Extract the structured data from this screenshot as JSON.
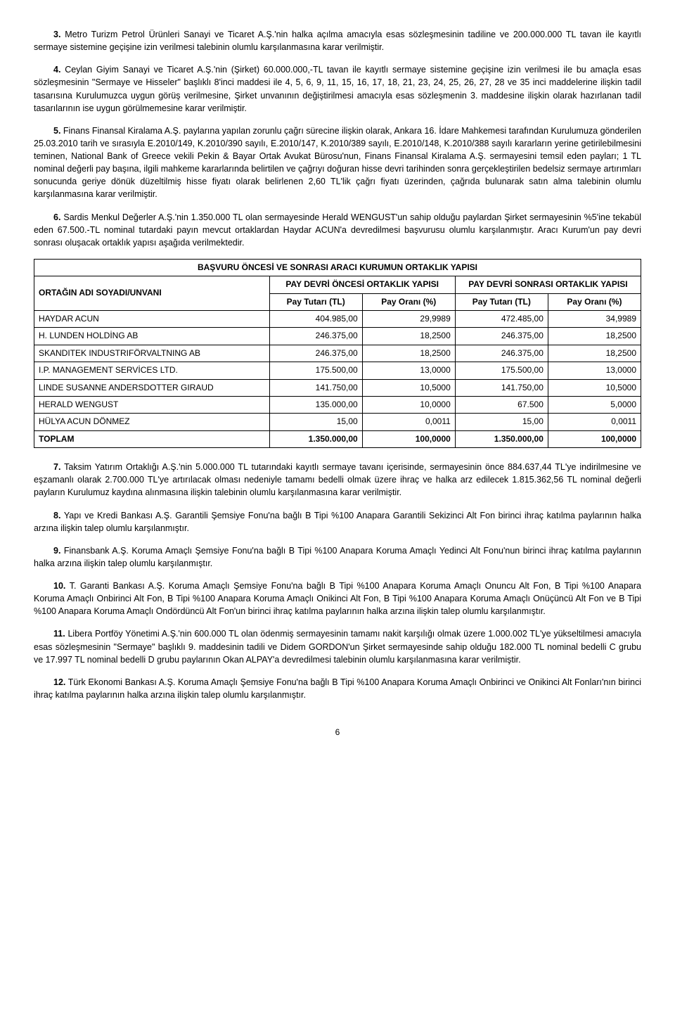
{
  "paragraphs": {
    "p3_lead": "3.",
    "p3": " Metro Turizm Petrol Ürünleri Sanayi ve Ticaret A.Ş.'nin halka açılma amacıyla esas sözleşmesinin tadiline ve 200.000.000 TL tavan ile kayıtlı sermaye sistemine geçişine izin verilmesi talebinin olumlu karşılanmasına karar verilmiştir.",
    "p4_lead": "4.",
    "p4": " Ceylan Giyim Sanayi ve Ticaret A.Ş.'nin (Şirket) 60.000.000,-TL tavan ile kayıtlı sermaye sistemine geçişine izin verilmesi ile bu amaçla esas sözleşmesinin \"Sermaye ve Hisseler\" başlıklı 8'inci maddesi ile 4, 5, 6, 9, 11, 15, 16, 17, 18, 21, 23, 24, 25, 26, 27, 28 ve 35 inci maddelerine ilişkin tadil tasarısına Kurulumuzca uygun görüş verilmesine, Şirket unvanının değiştirilmesi amacıyla esas sözleşmenin 3. maddesine ilişkin olarak hazırlanan tadil tasarılarının ise uygun görülmemesine karar verilmiştir.",
    "p5_lead": "5.",
    "p5": " Finans Finansal Kiralama A.Ş. paylarına yapılan zorunlu çağrı sürecine ilişkin olarak, Ankara 16. İdare Mahkemesi tarafından Kurulumuza gönderilen 25.03.2010 tarih ve sırasıyla E.2010/149, K.2010/390 sayılı, E.2010/147, K.2010/389 sayılı, E.2010/148, K.2010/388 sayılı kararların yerine getirilebilmesini teminen, National Bank of Greece vekili Pekin & Bayar Ortak Avukat Bürosu'nun, Finans Finansal Kiralama A.Ş. sermayesini temsil eden payları; 1 TL nominal değerli pay başına, ilgili mahkeme kararlarında belirtilen ve çağrıyı doğuran hisse devri tarihinden sonra gerçekleştirilen bedelsiz sermaye artırımları sonucunda geriye dönük düzeltilmiş hisse fiyatı olarak belirlenen 2,60 TL'lik çağrı fiyatı üzerinden, çağrıda bulunarak satın alma talebinin olumlu karşılanmasına karar verilmiştir.",
    "p6_lead": "6.",
    "p6": " Sardis Menkul Değerler A.Ş.'nin 1.350.000 TL olan sermayesinde Herald WENGUST'un sahip olduğu paylardan Şirket sermayesinin %5'ine tekabül eden 67.500.-TL nominal tutardaki payın mevcut ortaklardan Haydar ACUN'a devredilmesi başvurusu olumlu karşılanmıştır. Aracı Kurum'un pay devri sonrası oluşacak ortaklık yapısı aşağıda verilmektedir.",
    "p7_lead": "7.",
    "p7": " Taksim Yatırım Ortaklığı A.Ş.'nin 5.000.000 TL tutarındaki kayıtlı sermaye tavanı içerisinde, sermayesinin önce 884.637,44 TL'ye indirilmesine ve eşzamanlı olarak 2.700.000 TL'ye artırılacak olması nedeniyle tamamı bedelli olmak üzere ihraç ve halka arz edilecek 1.815.362,56 TL nominal değerli payların Kurulumuz kaydına alınmasına ilişkin talebinin olumlu karşılanmasına karar verilmiştir.",
    "p8_lead": "8.",
    "p8": " Yapı ve Kredi Bankası A.Ş. Garantili Şemsiye Fonu'na bağlı B Tipi %100 Anapara Garantili Sekizinci Alt Fon birinci ihraç katılma paylarının halka arzına ilişkin talep olumlu karşılanmıştır.",
    "p9_lead": "9.",
    "p9": " Finansbank A.Ş. Koruma Amaçlı Şemsiye Fonu'na bağlı B Tipi %100 Anapara Koruma Amaçlı Yedinci Alt Fonu'nun birinci ihraç katılma paylarının halka arzına ilişkin talep olumlu karşılanmıştır.",
    "p10_lead": "10.",
    "p10": " T. Garanti Bankası A.Ş. Koruma Amaçlı Şemsiye Fonu'na bağlı B Tipi %100 Anapara Koruma Amaçlı Onuncu Alt Fon, B Tipi %100 Anapara Koruma Amaçlı Onbirinci Alt Fon, B Tipi %100 Anapara Koruma Amaçlı Onikinci Alt Fon, B Tipi %100 Anapara Koruma Amaçlı Onüçüncü Alt Fon ve B Tipi %100 Anapara Koruma Amaçlı Ondördüncü Alt Fon'un birinci ihraç katılma paylarının halka arzına ilişkin talep olumlu karşılanmıştır.",
    "p11_lead": "11.",
    "p11": " Libera Portföy Yönetimi A.Ş.'nin 600.000 TL olan ödenmiş sermayesinin tamamı nakit karşılığı olmak üzere 1.000.002 TL'ye yükseltilmesi amacıyla esas sözleşmesinin \"Sermaye\" başlıklı 9. maddesinin tadili ve Didem GORDON'un Şirket sermayesinde sahip olduğu 182.000 TL nominal bedelli C grubu ve 17.997 TL nominal bedelli D grubu paylarının Okan ALPAY'a devredilmesi talebinin olumlu karşılanmasına karar verilmiştir.",
    "p12_lead": "12.",
    "p12": " Türk Ekonomi Bankası A.Ş. Koruma Amaçlı Şemsiye Fonu'na bağlı B Tipi %100 Anapara Koruma Amaçlı Onbirinci ve Onikinci Alt Fonları'nın birinci ihraç katılma paylarının halka arzına ilişkin talep olumlu karşılanmıştır."
  },
  "table": {
    "title": "BAŞVURU ÖNCESİ VE SONRASI ARACI KURUMUN ORTAKLIK YAPISI",
    "before_header": "PAY DEVRİ ÖNCESİ ORTAKLIK YAPISI",
    "after_header": "PAY DEVRİ SONRASI ORTAKLIK YAPISI",
    "col_owner": "ORTAĞIN ADI SOYADI/UNVANI",
    "col_amount": "Pay Tutarı (TL)",
    "col_ratio": "Pay Oranı (%)",
    "rows": [
      {
        "name": "HAYDAR ACUN",
        "b_amt": "404.985,00",
        "b_pct": "29,9989",
        "a_amt": "472.485,00",
        "a_pct": "34,9989"
      },
      {
        "name": "H. LUNDEN HOLDİNG AB",
        "b_amt": "246.375,00",
        "b_pct": "18,2500",
        "a_amt": "246.375,00",
        "a_pct": "18,2500"
      },
      {
        "name": "SKANDITEK INDUSTRIFÖRVALTNING AB",
        "b_amt": "246.375,00",
        "b_pct": "18,2500",
        "a_amt": "246.375,00",
        "a_pct": "18,2500"
      },
      {
        "name": "I.P. MANAGEMENT SERVİCES LTD.",
        "b_amt": "175.500,00",
        "b_pct": "13,0000",
        "a_amt": "175.500,00",
        "a_pct": "13,0000"
      },
      {
        "name": "LINDE SUSANNE ANDERSDOTTER GIRAUD",
        "b_amt": "141.750,00",
        "b_pct": "10,5000",
        "a_amt": "141.750,00",
        "a_pct": "10,5000"
      },
      {
        "name": "HERALD WENGUST",
        "b_amt": "135.000,00",
        "b_pct": "10,0000",
        "a_amt": "67.500",
        "a_pct": "5,0000"
      },
      {
        "name": "HÜLYA ACUN DÖNMEZ",
        "b_amt": "15,00",
        "b_pct": "0,0011",
        "a_amt": "15,00",
        "a_pct": "0,0011"
      }
    ],
    "total_label": "TOPLAM",
    "total": {
      "b_amt": "1.350.000,00",
      "b_pct": "100,0000",
      "a_amt": "1.350.000,00",
      "a_pct": "100,0000"
    }
  },
  "page_number": "6"
}
